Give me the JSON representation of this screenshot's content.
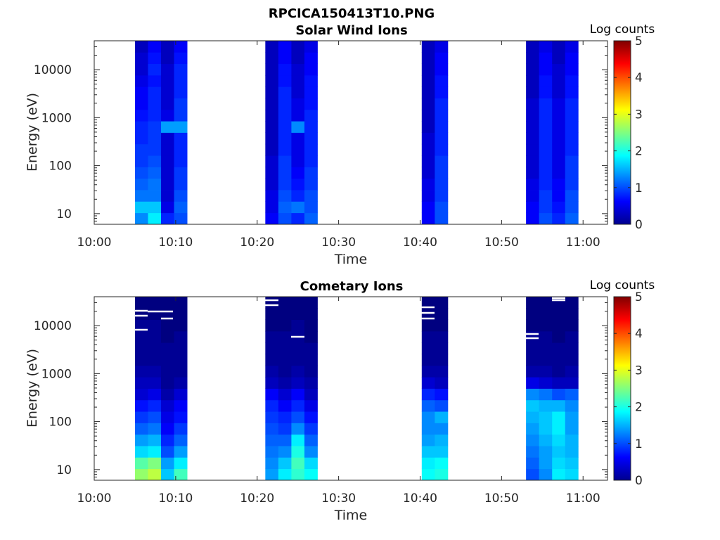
{
  "figure_title": "RPCICA150413T10.PNG",
  "chart_data": [
    {
      "type": "heatmap",
      "title": "Solar Wind Ions",
      "xlabel": "Time",
      "ylabel": "Energy (eV)",
      "y_scale": "log",
      "x_ticks": [
        "10:00",
        "10:10",
        "10:20",
        "10:30",
        "10:40",
        "10:50",
        "11:00"
      ],
      "y_ticks": [
        "10",
        "100",
        "1000",
        "10000"
      ],
      "xlim": [
        "10:00",
        "11:03"
      ],
      "ylim": [
        6,
        40000
      ],
      "colorbar": {
        "label": "Log counts",
        "ticks": [
          "0",
          "1",
          "2",
          "3",
          "4",
          "5"
        ],
        "range": [
          0,
          5
        ],
        "colormap": "jet"
      },
      "columns": [
        {
          "t_start": "10:05.0",
          "t_end": "10:06.6",
          "levels": [
            1.3,
            1.6,
            1.2,
            1.1,
            1.0,
            0.9,
            0.9,
            0.8,
            0.8,
            0.7,
            0.6,
            0.6,
            0.5,
            0.4,
            0.4,
            0.3
          ]
        },
        {
          "t_start": "10:06.6",
          "t_end": "10:08.2",
          "levels": [
            1.8,
            1.6,
            1.2,
            1.2,
            1.1,
            1.0,
            0.9,
            0.9,
            0.9,
            0.8,
            0.8,
            0.8,
            0.7,
            0.8,
            0.7,
            0.6
          ]
        },
        {
          "t_start": "10:08.2",
          "t_end": "10:09.8",
          "levels": [
            0.8,
            0.5,
            0.4,
            0.4,
            0.4,
            0.4,
            0.4,
            0.4,
            1.4,
            0.5,
            0.4,
            0.4,
            0.4,
            0.4,
            0.3,
            0.3
          ]
        },
        {
          "t_start": "10:09.8",
          "t_end": "10:11.4",
          "levels": [
            1.0,
            1.1,
            1.0,
            0.9,
            0.9,
            0.8,
            0.8,
            0.8,
            1.4,
            0.9,
            0.9,
            0.8,
            0.8,
            0.8,
            0.7,
            0.6
          ]
        },
        {
          "t_start": "10:21.0",
          "t_end": "10:22.6",
          "levels": [
            0.6,
            0.5,
            0.5,
            0.4,
            0.4,
            0.4,
            0.3,
            0.3,
            0.3,
            0.3,
            0.3,
            0.3,
            0.3,
            0.3,
            0.3,
            0.3
          ]
        },
        {
          "t_start": "10:22.6",
          "t_end": "10:24.2",
          "levels": [
            1.0,
            1.1,
            1.0,
            0.9,
            0.9,
            0.9,
            0.8,
            0.8,
            0.8,
            0.8,
            0.8,
            0.8,
            0.7,
            0.7,
            0.6,
            0.6
          ]
        },
        {
          "t_start": "10:24.2",
          "t_end": "10:25.8",
          "levels": [
            0.8,
            1.2,
            0.8,
            0.7,
            0.6,
            0.5,
            0.5,
            0.5,
            1.3,
            0.5,
            0.5,
            0.4,
            0.4,
            0.4,
            0.3,
            0.3
          ]
        },
        {
          "t_start": "10:25.8",
          "t_end": "10:27.4",
          "levels": [
            1.1,
            1.0,
            1.0,
            0.9,
            0.9,
            0.8,
            0.8,
            0.8,
            0.8,
            0.8,
            0.7,
            0.7,
            0.7,
            0.6,
            0.6,
            0.5
          ]
        },
        {
          "t_start": "10:40.2",
          "t_end": "10:41.8",
          "levels": [
            0.6,
            0.6,
            0.5,
            0.5,
            0.4,
            0.4,
            0.4,
            0.4,
            0.3,
            0.3,
            0.3,
            0.3,
            0.3,
            0.3,
            0.3,
            0.3
          ]
        },
        {
          "t_start": "10:41.8",
          "t_end": "10:43.4",
          "levels": [
            1.0,
            1.0,
            0.9,
            0.9,
            0.9,
            0.9,
            0.8,
            0.8,
            0.8,
            0.8,
            0.8,
            0.7,
            0.7,
            0.6,
            0.6,
            0.5
          ]
        },
        {
          "t_start": "10:53.0",
          "t_end": "10:54.6",
          "levels": [
            0.6,
            0.6,
            0.5,
            0.5,
            0.4,
            0.4,
            0.4,
            0.4,
            0.4,
            0.4,
            0.4,
            0.3,
            0.3,
            0.3,
            0.3,
            0.3
          ]
        },
        {
          "t_start": "10:54.6",
          "t_end": "10:56.2",
          "levels": [
            1.0,
            0.9,
            0.9,
            0.8,
            0.8,
            0.8,
            0.8,
            0.8,
            0.8,
            0.8,
            0.8,
            0.7,
            0.7,
            0.6,
            0.6,
            0.5
          ]
        },
        {
          "t_start": "10:56.2",
          "t_end": "10:57.8",
          "levels": [
            0.8,
            0.7,
            0.6,
            0.6,
            0.5,
            0.5,
            0.5,
            0.5,
            0.5,
            0.5,
            0.5,
            0.4,
            0.4,
            0.4,
            0.3,
            0.3
          ]
        },
        {
          "t_start": "10:57.8",
          "t_end": "10:59.4",
          "levels": [
            1.1,
            1.0,
            1.0,
            0.9,
            0.9,
            0.9,
            0.8,
            0.8,
            0.8,
            0.8,
            0.8,
            0.7,
            0.7,
            0.6,
            0.6,
            0.5
          ]
        }
      ]
    },
    {
      "type": "heatmap",
      "title": "Cometary Ions",
      "xlabel": "Time",
      "ylabel": "Energy (eV)",
      "y_scale": "log",
      "x_ticks": [
        "10:00",
        "10:10",
        "10:20",
        "10:30",
        "10:40",
        "10:50",
        "11:00"
      ],
      "y_ticks": [
        "10",
        "100",
        "1000",
        "10000"
      ],
      "xlim": [
        "10:00",
        "11:03"
      ],
      "ylim": [
        6,
        40000
      ],
      "colorbar": {
        "label": "Log counts",
        "ticks": [
          "0",
          "1",
          "2",
          "3",
          "4",
          "5"
        ],
        "range": [
          0,
          5
        ],
        "colormap": "jet"
      },
      "columns": [
        {
          "t_start": "10:05.0",
          "t_end": "10:06.6",
          "levels": [
            2.6,
            2.3,
            1.7,
            1.4,
            1.1,
            0.9,
            0.7,
            0.4,
            0.3,
            0.2,
            0.1,
            0.1,
            0.1,
            0.1,
            0.0,
            0.0
          ]
        },
        {
          "t_start": "10:06.6",
          "t_end": "10:08.2",
          "levels": [
            2.8,
            2.5,
            1.8,
            1.5,
            1.2,
            1.0,
            0.8,
            0.5,
            0.3,
            0.2,
            0.1,
            0.1,
            0.1,
            0.1,
            0.0,
            0.0
          ]
        },
        {
          "t_start": "10:08.2",
          "t_end": "10:09.8",
          "levels": [
            1.6,
            1.4,
            1.0,
            0.8,
            0.6,
            0.5,
            0.4,
            0.2,
            0.1,
            0.1,
            0.1,
            0.1,
            0.0,
            0.0,
            0.0,
            0.0
          ]
        },
        {
          "t_start": "10:09.8",
          "t_end": "10:11.4",
          "levels": [
            2.2,
            1.8,
            1.4,
            1.1,
            0.9,
            0.7,
            0.6,
            0.4,
            0.2,
            0.1,
            0.1,
            0.1,
            0.1,
            0.0,
            0.0,
            0.0
          ]
        },
        {
          "t_start": "10:21.0",
          "t_end": "10:22.6",
          "levels": [
            1.4,
            1.3,
            1.2,
            1.1,
            1.0,
            0.9,
            0.8,
            0.6,
            0.3,
            0.2,
            0.1,
            0.1,
            0.1,
            0.0,
            0.0,
            0.0
          ]
        },
        {
          "t_start": "10:22.6",
          "t_end": "10:24.2",
          "levels": [
            1.8,
            1.6,
            1.3,
            1.1,
            0.9,
            0.8,
            0.6,
            0.4,
            0.2,
            0.1,
            0.1,
            0.1,
            0.1,
            0.0,
            0.0,
            0.0
          ]
        },
        {
          "t_start": "10:24.2",
          "t_end": "10:25.8",
          "levels": [
            2.1,
            2.2,
            2.0,
            1.8,
            1.3,
            1.0,
            0.8,
            0.6,
            0.3,
            0.2,
            0.1,
            0.1,
            0.1,
            0.1,
            0.0,
            0.0
          ]
        },
        {
          "t_start": "10:25.8",
          "t_end": "10:27.4",
          "levels": [
            1.9,
            1.7,
            1.3,
            1.1,
            0.9,
            0.7,
            0.5,
            0.3,
            0.2,
            0.1,
            0.1,
            0.1,
            0.0,
            0.0,
            0.0,
            0.0
          ]
        },
        {
          "t_start": "10:40.2",
          "t_end": "10:41.8",
          "levels": [
            1.9,
            1.8,
            1.6,
            1.4,
            1.3,
            1.3,
            1.1,
            0.8,
            0.4,
            0.2,
            0.1,
            0.1,
            0.1,
            0.0,
            0.0,
            0.0
          ]
        },
        {
          "t_start": "10:41.8",
          "t_end": "10:43.4",
          "levels": [
            2.0,
            1.9,
            1.6,
            1.5,
            1.3,
            1.5,
            1.0,
            0.7,
            0.3,
            0.2,
            0.1,
            0.1,
            0.1,
            0.0,
            0.0,
            0.0
          ]
        },
        {
          "t_start": "10:53.0",
          "t_end": "10:54.6",
          "levels": [
            1.0,
            1.1,
            1.2,
            1.3,
            1.4,
            1.5,
            1.6,
            1.3,
            0.5,
            0.2,
            0.1,
            0.1,
            0.1,
            0.0,
            0.0,
            0.0
          ]
        },
        {
          "t_start": "10:54.6",
          "t_end": "10:56.2",
          "levels": [
            1.3,
            1.4,
            1.4,
            1.5,
            1.6,
            1.6,
            1.5,
            1.2,
            0.4,
            0.2,
            0.1,
            0.1,
            0.1,
            0.0,
            0.0,
            0.0
          ]
        },
        {
          "t_start": "10:56.2",
          "t_end": "10:57.8",
          "levels": [
            1.8,
            1.7,
            1.6,
            1.7,
            1.8,
            1.8,
            1.5,
            1.0,
            0.3,
            0.1,
            0.1,
            0.1,
            0.0,
            0.0,
            0.0,
            0.0
          ]
        },
        {
          "t_start": "10:57.8",
          "t_end": "10:59.4",
          "levels": [
            1.7,
            1.6,
            1.5,
            1.5,
            1.4,
            1.4,
            1.3,
            1.1,
            0.3,
            0.2,
            0.1,
            0.1,
            0.1,
            0.0,
            0.0,
            0.0
          ]
        }
      ]
    }
  ]
}
